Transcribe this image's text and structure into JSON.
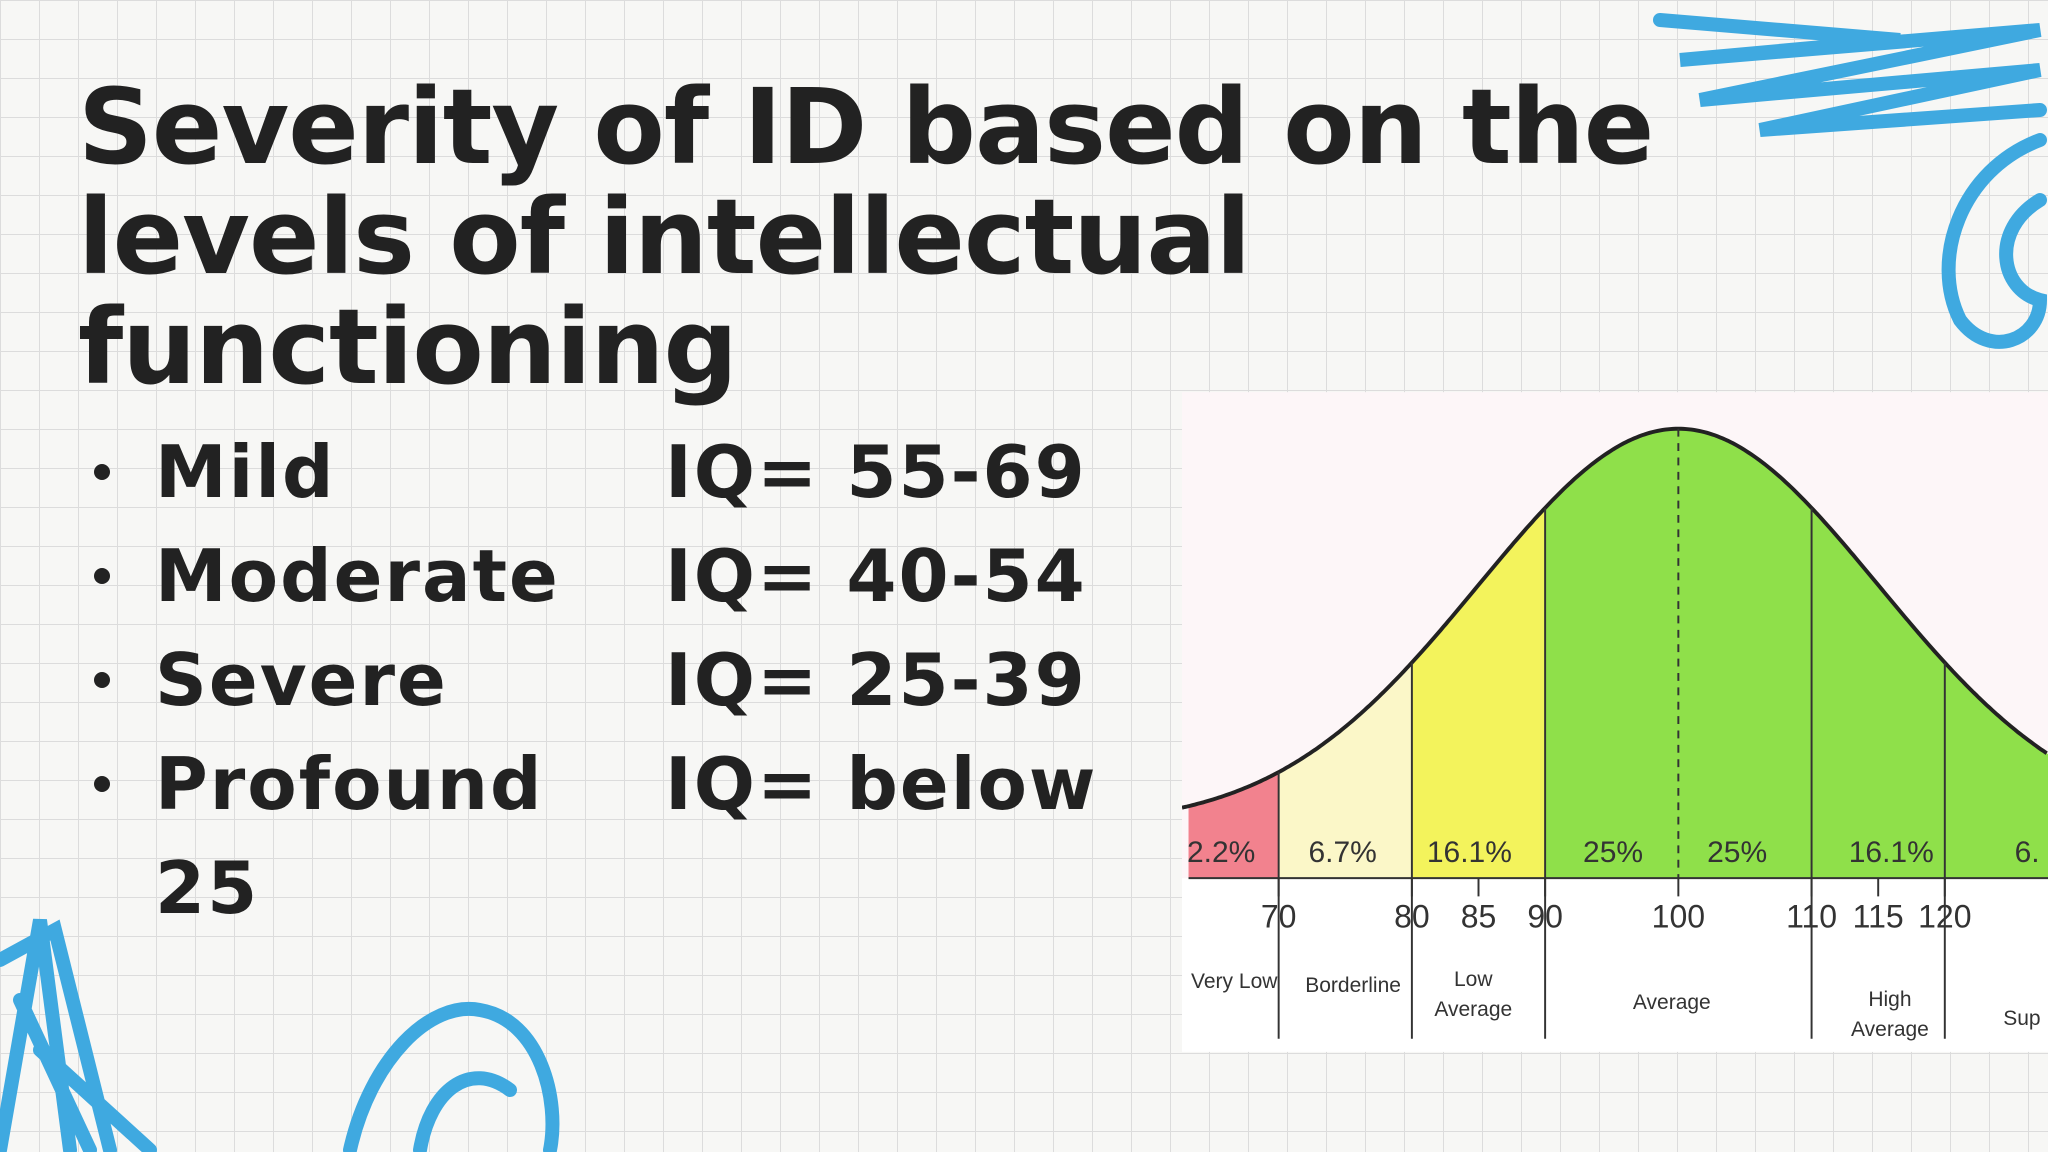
{
  "header": {
    "title": "Severity of ID based on the levels of intellectual functioning"
  },
  "bullets": [
    {
      "level": "Mild",
      "iq": "IQ= 55-69"
    },
    {
      "level": "Moderate",
      "iq": "IQ= 40-54"
    },
    {
      "level": "Severe",
      "iq": "IQ= 25-39"
    },
    {
      "level": "Profound",
      "iq": "IQ= below 25"
    }
  ],
  "figure": {
    "percentages": [
      "2.2%",
      "6.7%",
      "16.1%",
      "25%",
      "25%",
      "16.1%",
      "6."
    ],
    "iq_ticks": [
      70,
      80,
      85,
      90,
      100,
      110,
      115,
      120
    ],
    "ranges": [
      "Very Low",
      "Borderline",
      "Low Average",
      "Average",
      "High Average",
      "Sup"
    ]
  }
}
